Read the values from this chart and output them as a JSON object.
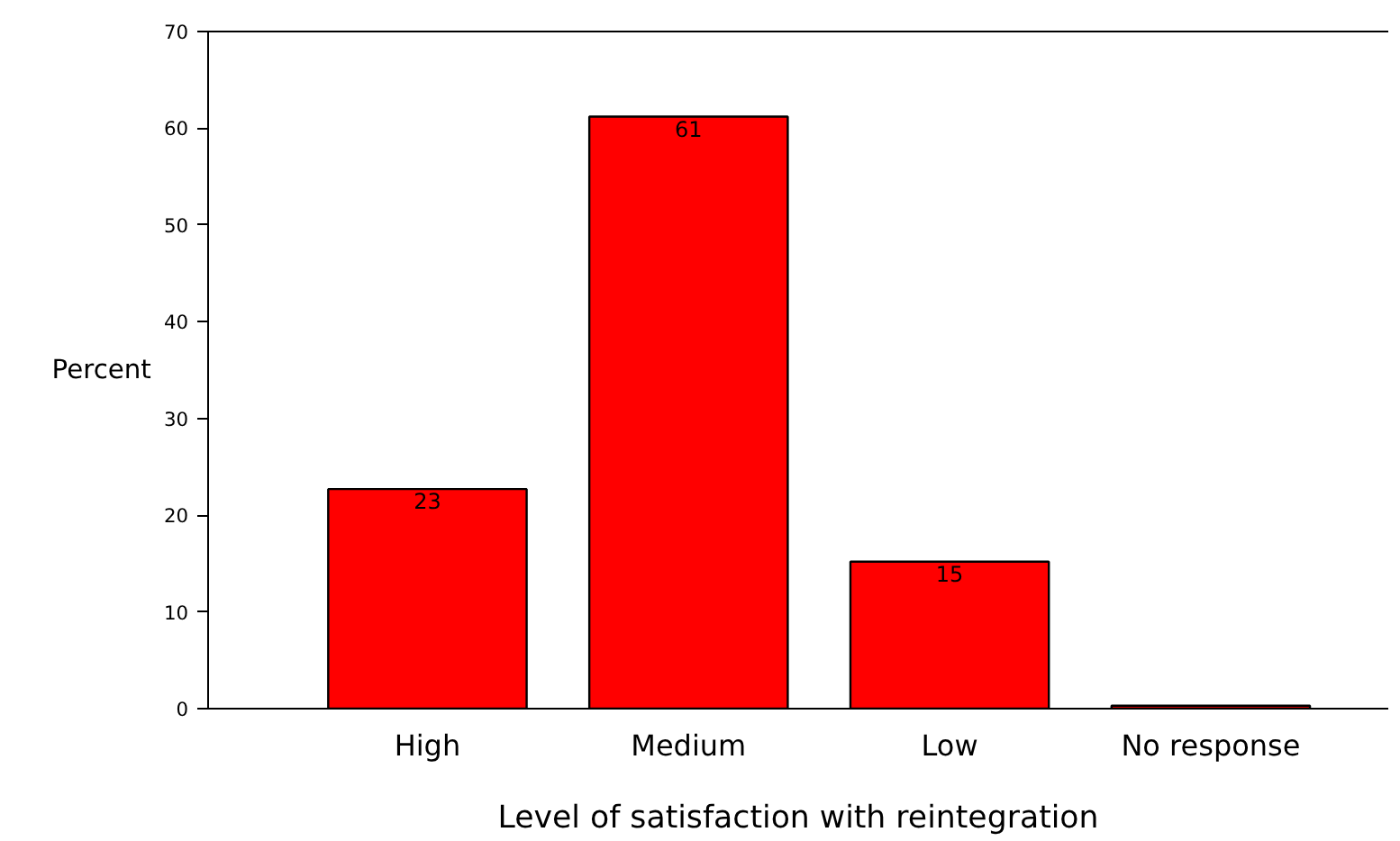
{
  "chart_data": {
    "type": "bar",
    "xlabel": "Level of satisfaction with reintegration",
    "ylabel": "Percent",
    "categories": [
      "High",
      "Medium",
      "Low",
      "No response"
    ],
    "values": [
      22.7,
      61.2,
      15.2,
      0.3
    ],
    "value_labels": [
      "23",
      "61",
      "15",
      null
    ],
    "color": "#ff0000",
    "ylim": [
      0,
      70
    ],
    "yticks": [
      0,
      10,
      20,
      30,
      40,
      50,
      60,
      70
    ],
    "grid": false
  }
}
